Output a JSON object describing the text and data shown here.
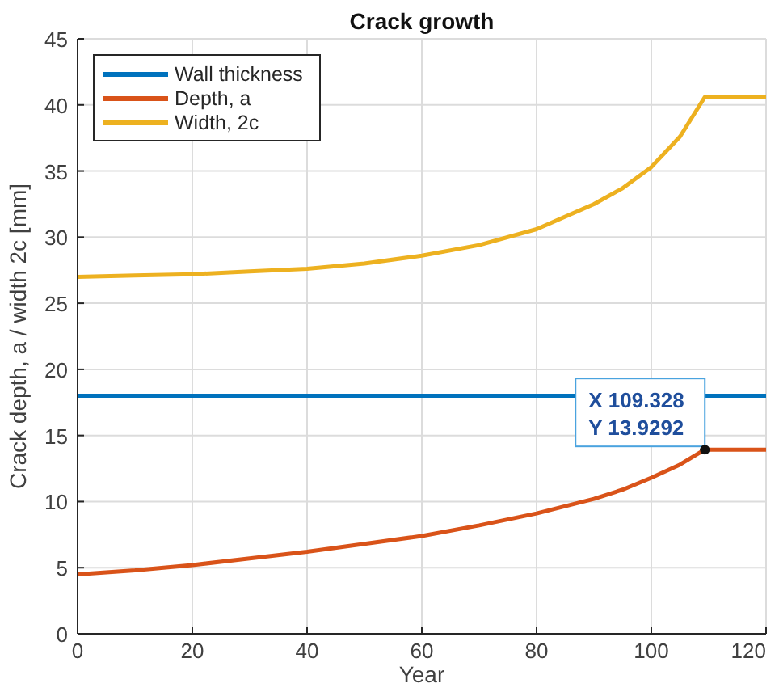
{
  "chart_data": {
    "type": "line",
    "title": "Crack growth",
    "xlabel": "Year",
    "ylabel": "Crack depth, a / width 2c [mm]",
    "xlim": [
      0,
      120
    ],
    "ylim": [
      0,
      45
    ],
    "xticks": [
      0,
      20,
      40,
      60,
      80,
      100,
      120
    ],
    "yticks": [
      0,
      5,
      10,
      15,
      20,
      25,
      30,
      35,
      40,
      45
    ],
    "grid": true,
    "legend": "top left",
    "line_style": "solid",
    "marker": "none",
    "series": [
      {
        "name": "Wall thickness",
        "color": "#0072bd",
        "x": [
          0,
          120
        ],
        "values": [
          18,
          18
        ]
      },
      {
        "name": "Depth, a",
        "color": "#d95319",
        "x": [
          0,
          10,
          20,
          30,
          40,
          50,
          60,
          70,
          80,
          90,
          95,
          100,
          105,
          109.328,
          120
        ],
        "values": [
          4.5,
          4.8,
          5.2,
          5.7,
          6.2,
          6.8,
          7.4,
          8.2,
          9.1,
          10.2,
          10.9,
          11.8,
          12.8,
          13.93,
          13.93
        ]
      },
      {
        "name": "Width, 2c",
        "color": "#edb120",
        "x": [
          0,
          10,
          20,
          30,
          40,
          50,
          60,
          70,
          80,
          90,
          95,
          100,
          105,
          109.328,
          120
        ],
        "values": [
          27,
          27.1,
          27.2,
          27.4,
          27.6,
          28,
          28.6,
          29.4,
          30.6,
          32.5,
          33.7,
          35.3,
          37.6,
          40.6,
          40.6
        ]
      }
    ],
    "annotations": [
      {
        "text": "X 109.328\nY 13.9292",
        "x": 109.328,
        "y": 13.9292
      }
    ]
  }
}
